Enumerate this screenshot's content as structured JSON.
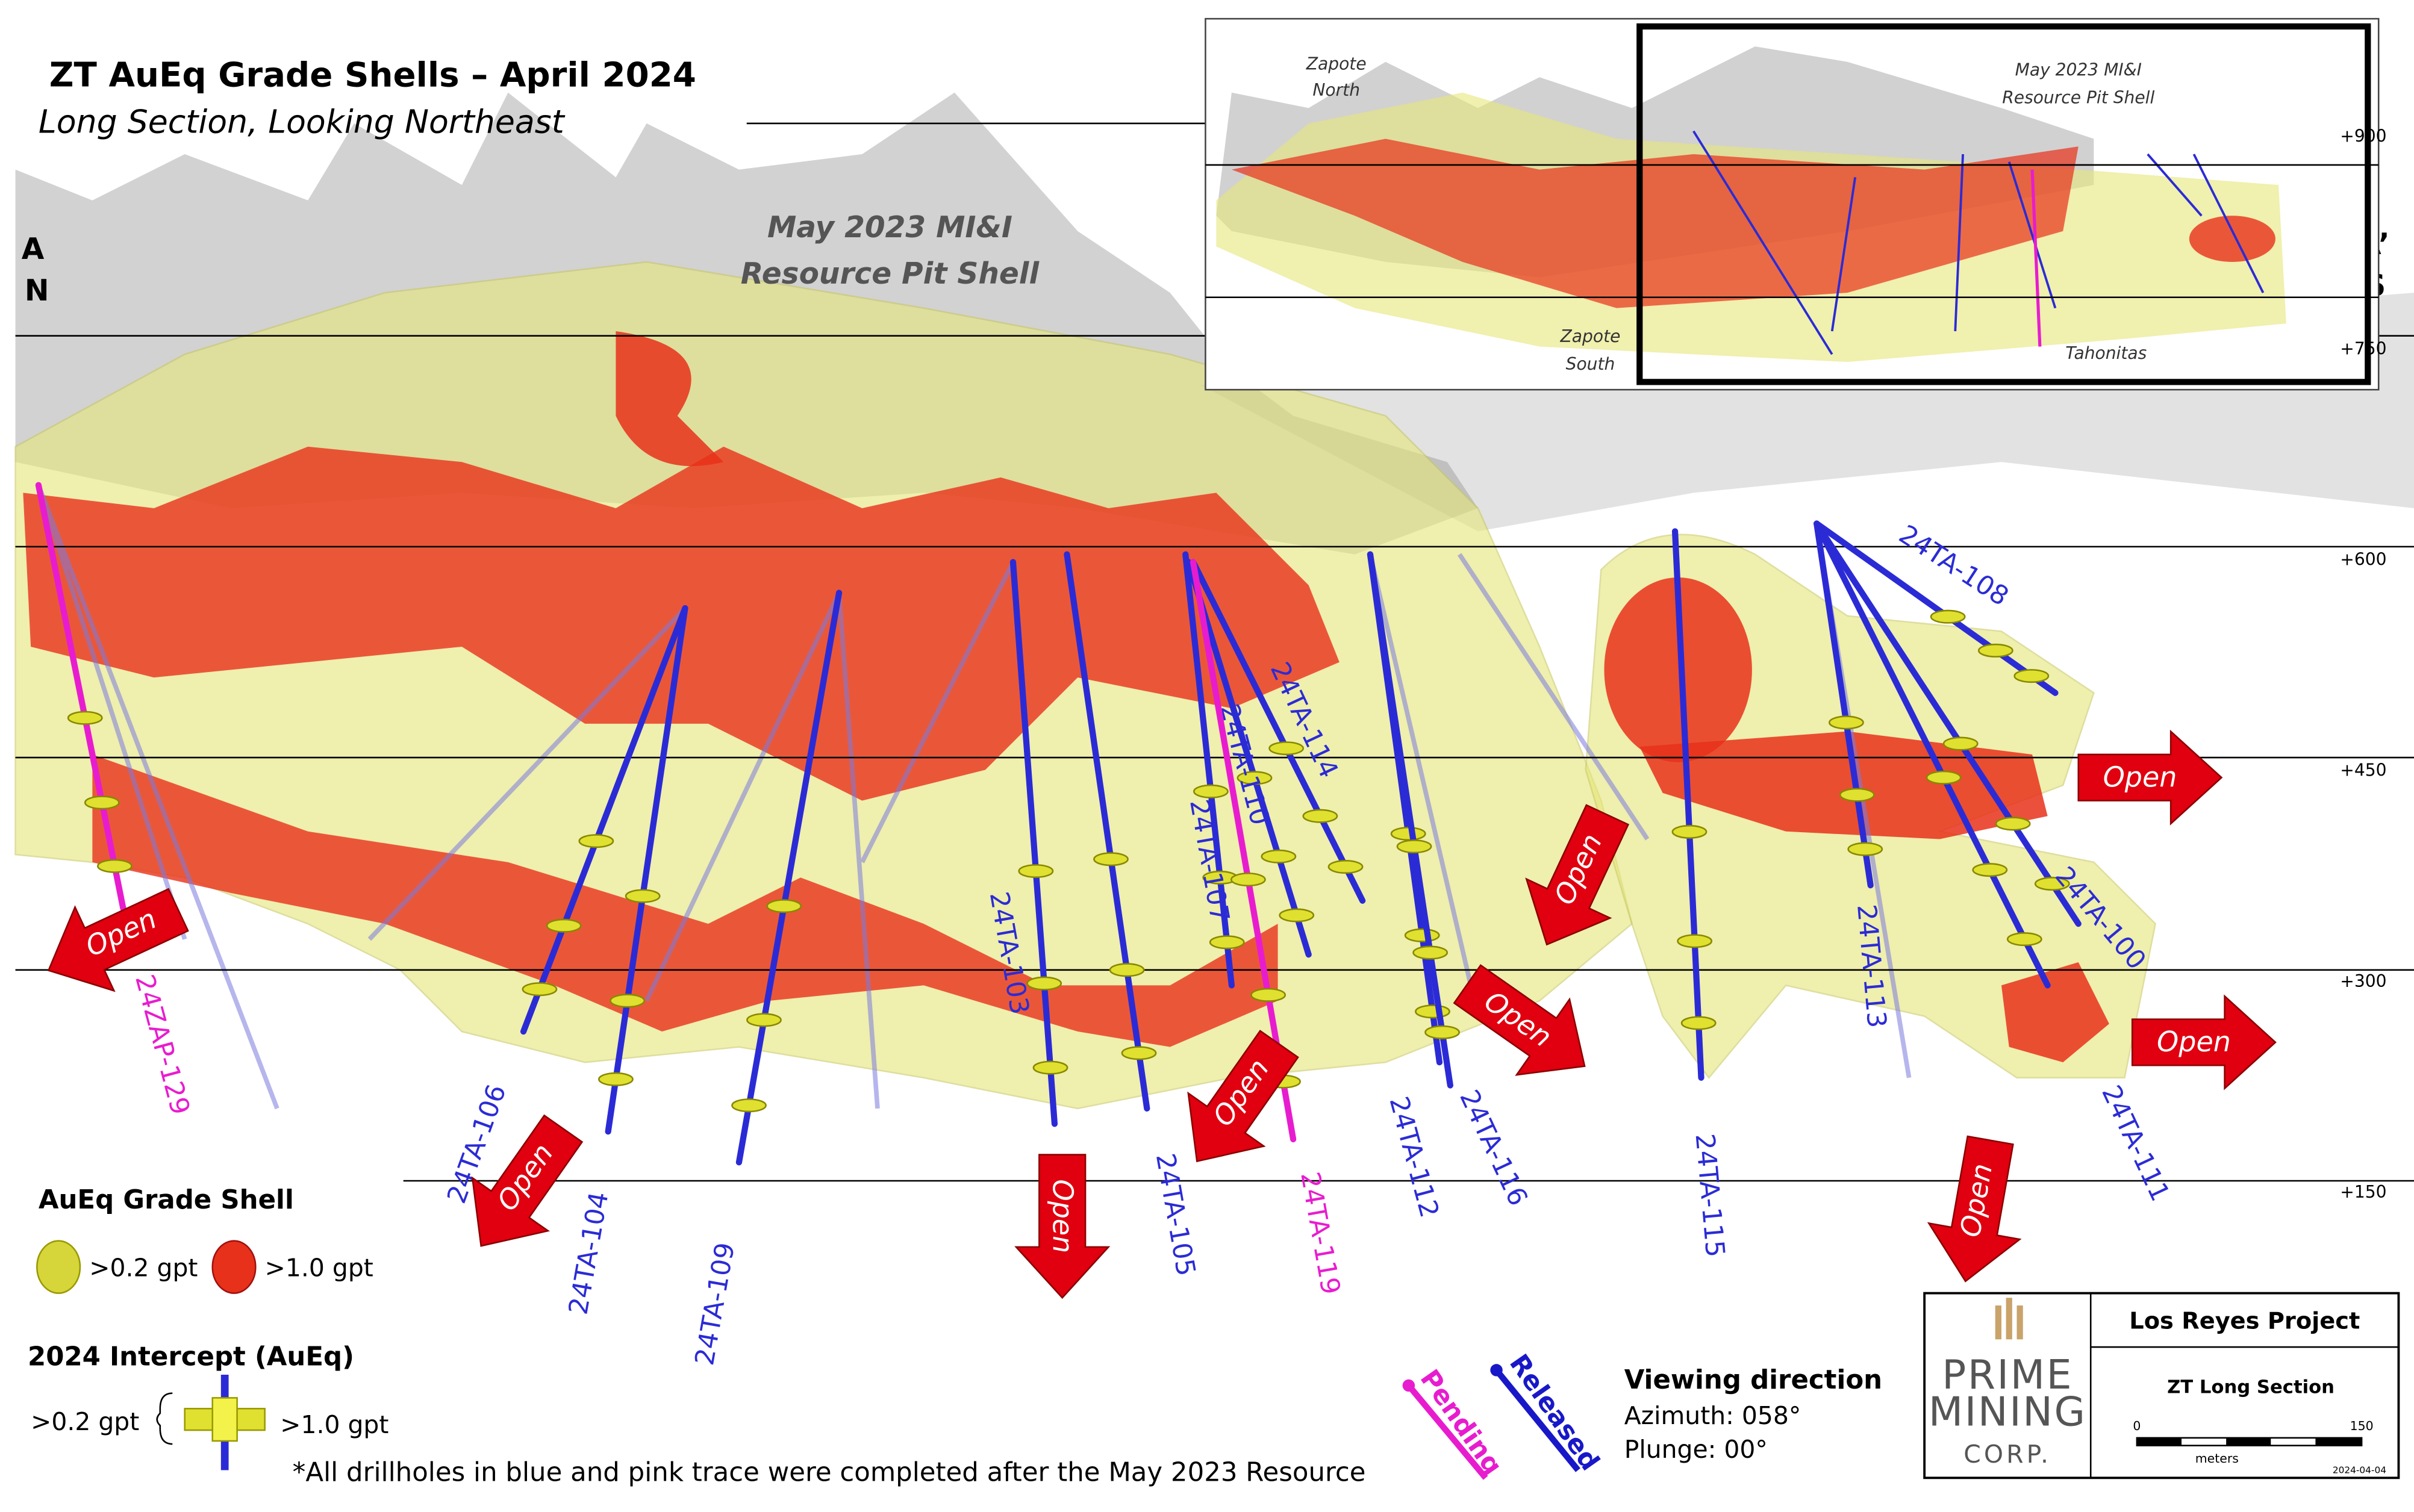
{
  "header": {
    "title": "ZT AuEq Grade Shells – April 2024",
    "subtitle": "Long Section, Looking Northeast"
  },
  "section_ends": {
    "left": [
      "A",
      "N"
    ],
    "right": [
      "A’",
      "S"
    ]
  },
  "pit_shell_label": [
    "May 2023 MI&I",
    "Resource Pit Shell"
  ],
  "elevations": [
    "+900",
    "+750",
    "+600",
    "+450",
    "+300",
    "+150"
  ],
  "inset": {
    "zapote_north": [
      "Zapote",
      "North"
    ],
    "zapote_south": [
      "Zapote",
      "South"
    ],
    "pit_shell": [
      "May 2023 MI&I",
      "Resource Pit Shell"
    ],
    "tahonitas": "Tahonitas",
    "elevations": [
      "+900",
      "+750"
    ]
  },
  "drillholes": [
    {
      "label": "24ZAP-129",
      "color": "#e81ccf"
    },
    {
      "label": "24TA-106",
      "color": "#2b2bd6"
    },
    {
      "label": "24TA-104",
      "color": "#2b2bd6"
    },
    {
      "label": "24TA-109",
      "color": "#2b2bd6"
    },
    {
      "label": "24TA-103",
      "color": "#2b2bd6"
    },
    {
      "label": "24TA-105",
      "color": "#2b2bd6"
    },
    {
      "label": "24TA-107",
      "color": "#2b2bd6"
    },
    {
      "label": "24TA-110",
      "color": "#2b2bd6"
    },
    {
      "label": "24TA-114",
      "color": "#2b2bd6"
    },
    {
      "label": "24TA-119",
      "color": "#e81ccf"
    },
    {
      "label": "24TA-112",
      "color": "#2b2bd6"
    },
    {
      "label": "24TA-116",
      "color": "#2b2bd6"
    },
    {
      "label": "24TA-115",
      "color": "#2b2bd6"
    },
    {
      "label": "24TA-113",
      "color": "#2b2bd6"
    },
    {
      "label": "24TA-108",
      "color": "#2b2bd6"
    },
    {
      "label": "24TA-100",
      "color": "#2b2bd6"
    },
    {
      "label": "24TA-111",
      "color": "#2b2bd6"
    }
  ],
  "open_arrows": [
    "Open",
    "Open",
    "Open",
    "Open",
    "Open",
    "Open",
    "Open",
    "Open",
    "Open"
  ],
  "legend": {
    "grade_shell_title": "AuEq Grade Shell",
    "shells": [
      ">0.2 gpt",
      ">1.0 gpt"
    ],
    "intercept_title": "2024 Intercept (AuEq)",
    "intercept_low": ">0.2 gpt",
    "intercept_high": ">1.0 gpt",
    "note": "*All drillholes in blue and pink trace were completed after the May 2023 Resource",
    "status": [
      "Pending",
      "Released"
    ]
  },
  "viewing": {
    "title": "Viewing direction",
    "azimuth": "Azimuth: 058°",
    "plunge": "Plunge: 00°"
  },
  "title_block": {
    "company": [
      "PRIME",
      "MINING",
      "CORP."
    ],
    "project": "Los Reyes Project",
    "section": "ZT Long Section",
    "scale": [
      "0",
      "150"
    ],
    "units": "meters",
    "date": "2024-04-04"
  }
}
